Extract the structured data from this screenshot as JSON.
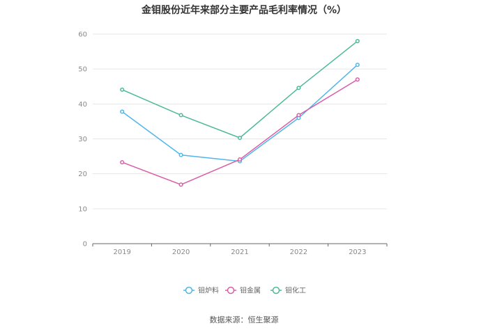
{
  "chart_data": {
    "type": "line",
    "title": "金钼股份近年来部分主要产品毛利率情况（%）",
    "categories": [
      "2019",
      "2020",
      "2021",
      "2022",
      "2023"
    ],
    "ylim": [
      0,
      60
    ],
    "yticks": [
      0,
      10,
      20,
      30,
      40,
      50,
      60
    ],
    "grid": true,
    "legend_position": "bottom-center",
    "series": [
      {
        "name": "钼炉料",
        "color": "#4fb6ea",
        "values": [
          37.8,
          25.4,
          23.6,
          36.0,
          51.2
        ]
      },
      {
        "name": "钼金属",
        "color": "#d95ea6",
        "values": [
          23.3,
          16.9,
          24.1,
          36.8,
          47.0
        ]
      },
      {
        "name": "钼化工",
        "color": "#4cb99a",
        "values": [
          44.1,
          36.8,
          30.3,
          44.6,
          58.0
        ]
      }
    ],
    "source": "数据来源：恒生聚源"
  }
}
